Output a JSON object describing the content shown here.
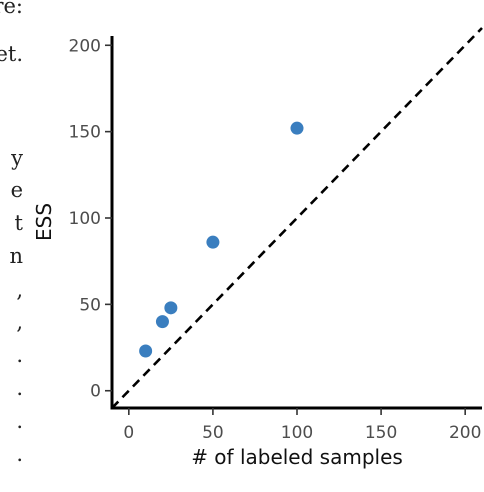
{
  "background_text": {
    "fragments": [
      "re:",
      "et.",
      "y",
      "e",
      "t",
      "n",
      ",",
      ",",
      ".",
      ".",
      ".",
      "."
    ]
  },
  "chart_data": {
    "type": "scatter",
    "xlabel": "# of labeled samples",
    "ylabel": "ESS",
    "xlim": [
      -10,
      210
    ],
    "ylim": [
      -10,
      210
    ],
    "x_ticks": [
      0,
      50,
      100,
      150,
      200
    ],
    "y_ticks": [
      0,
      50,
      100,
      150,
      200
    ],
    "x_tick_labels": [
      "0",
      "50",
      "100",
      "150",
      "200"
    ],
    "y_tick_labels": [
      "0",
      "50",
      "100",
      "150",
      "200"
    ],
    "series": [
      {
        "points": [
          {
            "x": 10,
            "y": 23
          },
          {
            "x": 20,
            "y": 40
          },
          {
            "x": 25,
            "y": 48
          },
          {
            "x": 50,
            "y": 86
          },
          {
            "x": 100,
            "y": 152
          }
        ]
      }
    ],
    "reference_line": {
      "style": "dashed",
      "from": [
        -10,
        -10
      ],
      "to": [
        210,
        210
      ]
    },
    "colors": {
      "points": "#3a7ebf",
      "axes": "#000000",
      "reference_line": "#000000",
      "tick_labels": "#4d4d4d"
    },
    "grid": false,
    "legend": "none"
  }
}
